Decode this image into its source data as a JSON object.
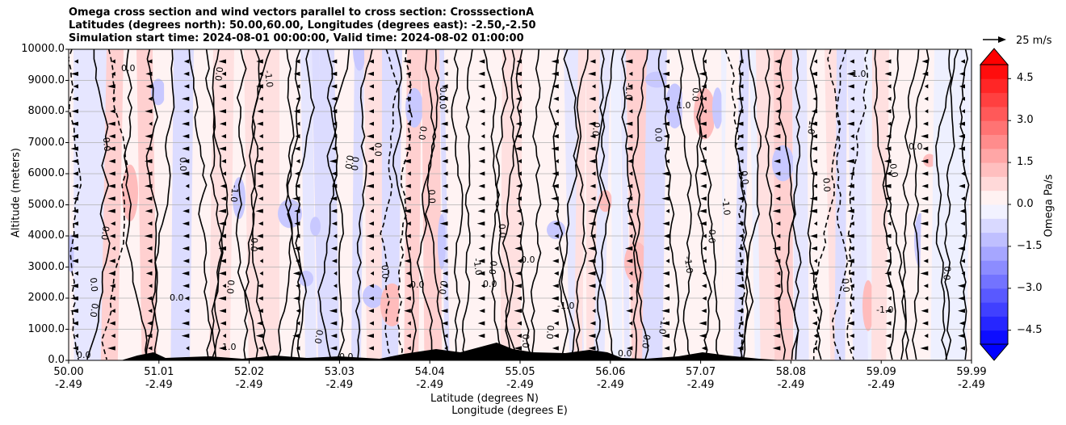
{
  "title_lines": [
    "Omega cross section and wind vectors parallel to cross section: CrosssectionA",
    "Latitudes (degrees north): 50.00,60.00, Longitudes (degrees east): -2.50,-2.50",
    "Simulation start time: 2024-08-01 00:00:00, Valid time: 2024-08-02 01:00:00"
  ],
  "chart_data": {
    "type": "heatmap",
    "title": "Omega cross section and wind vectors parallel to cross section: CrosssectionA",
    "ylabel": "Altitude (meters)",
    "xlabel_lines": [
      "Latitude (degrees N)",
      "Longitude (degrees E)"
    ],
    "ylim": [
      0,
      10000
    ],
    "y_ticks": [
      "0.0",
      "1000.0",
      "2000.0",
      "3000.0",
      "4000.0",
      "5000.0",
      "6000.0",
      "7000.0",
      "8000.0",
      "9000.0",
      "10000.0"
    ],
    "x_ticks": [
      {
        "lat": "50.00",
        "lon": "-2.49"
      },
      {
        "lat": "51.01",
        "lon": "-2.49"
      },
      {
        "lat": "52.02",
        "lon": "-2.49"
      },
      {
        "lat": "53.03",
        "lon": "-2.49"
      },
      {
        "lat": "54.04",
        "lon": "-2.49"
      },
      {
        "lat": "55.05",
        "lon": "-2.49"
      },
      {
        "lat": "56.06",
        "lon": "-2.49"
      },
      {
        "lat": "57.07",
        "lon": "-2.49"
      },
      {
        "lat": "58.08",
        "lon": "-2.49"
      },
      {
        "lat": "59.09",
        "lon": "-2.49"
      },
      {
        "lat": "59.99",
        "lon": "-2.49"
      }
    ],
    "grid": "horizontal",
    "colorbar": {
      "label": "Omega Pa/s",
      "range": [
        -5.0,
        5.0
      ],
      "ticks": [
        "4.5",
        "3.0",
        "1.5",
        "0.0",
        "−1.5",
        "−3.0",
        "−4.5"
      ],
      "colormap": "bwr",
      "extend": "both"
    },
    "contour_levels": [
      -1.0,
      0.0,
      1.0
    ],
    "contour_labels": [
      "0.0",
      "1.0",
      "-1.0"
    ],
    "quiver_key": "25 m/s",
    "terrain_color": "#000000"
  }
}
